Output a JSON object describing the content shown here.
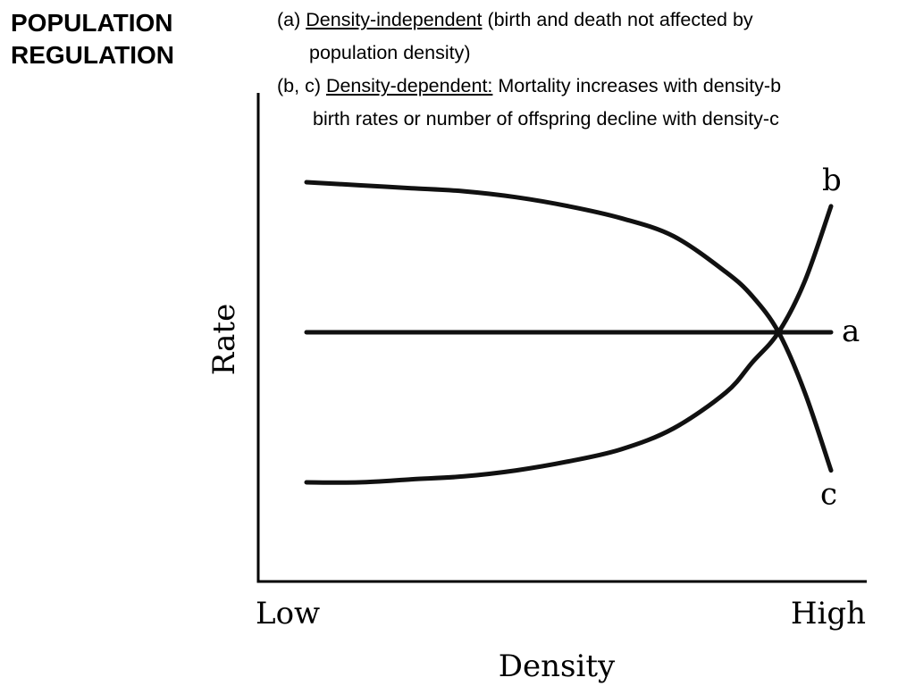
{
  "title": {
    "line1": "POPULATION",
    "line2": "REGULATION"
  },
  "notes": {
    "a_prefix": "(a) ",
    "a_term": "Density-independent",
    "a_rest": " (birth and death not affected by",
    "a_cont": "population density)",
    "bc_prefix": "(b, c) ",
    "bc_term": "Density-dependent:",
    "bc_rest": " Mortality increases with density-b",
    "bc_cont": "birth rates or number of offspring decline with density-c"
  },
  "chart_data": {
    "type": "line",
    "xlabel": "Density",
    "ylabel": "Rate",
    "x_tick_labels": [
      "Low",
      "High"
    ],
    "x": [
      0.0,
      0.1,
      0.2,
      0.3,
      0.4,
      0.5,
      0.6,
      0.7,
      0.8,
      0.85,
      0.9,
      0.95,
      1.0
    ],
    "series": [
      {
        "name": "a",
        "values": [
          0.5,
          0.5,
          0.5,
          0.5,
          0.5,
          0.5,
          0.5,
          0.5,
          0.5,
          0.5,
          0.5,
          0.5,
          0.5
        ]
      },
      {
        "name": "b",
        "values": [
          0.0,
          0.0,
          0.01,
          0.02,
          0.04,
          0.07,
          0.11,
          0.18,
          0.3,
          0.4,
          0.5,
          0.67,
          0.92
        ]
      },
      {
        "name": "c",
        "values": [
          1.0,
          0.99,
          0.98,
          0.97,
          0.95,
          0.92,
          0.88,
          0.82,
          0.7,
          0.62,
          0.5,
          0.3,
          0.04
        ]
      }
    ],
    "grid": false
  }
}
